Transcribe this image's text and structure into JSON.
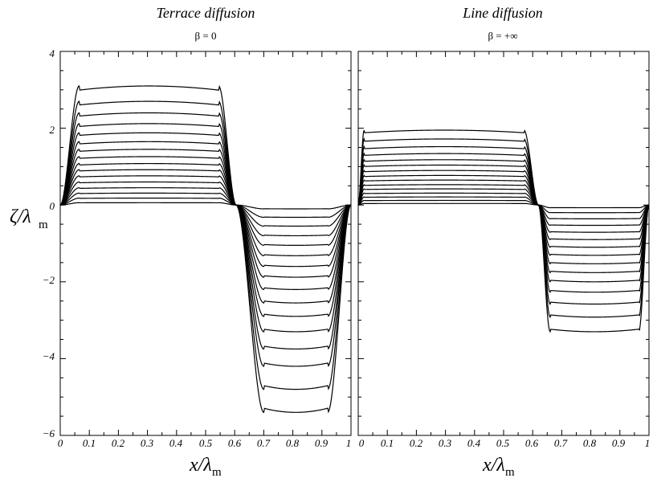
{
  "chart_data": [
    {
      "type": "line",
      "title": "Terrace diffusion",
      "subtitle": "β = 0",
      "ylabel_main": "ζ/λ",
      "ylabel_sub": "m",
      "xlabel_main": "x/λ",
      "xlabel_sub": "m",
      "xlim": [
        0,
        1
      ],
      "ylim": [
        -6,
        4
      ],
      "xticks": [
        "0",
        "0.1",
        "0.2",
        "0.3",
        "0.4",
        "0.5",
        "0.6",
        "0.7",
        "0.8",
        "0.9",
        "1"
      ],
      "yticks": [
        "4",
        "2",
        "0",
        "−2",
        "−4",
        "−6"
      ],
      "grid": false,
      "profile": {
        "plateau_start": 0.065,
        "plateau_end": 0.545,
        "crossing": 0.605,
        "trough_start": 0.7,
        "trough_end": 0.92
      },
      "series": [
        {
          "max": 3.1,
          "min": -5.4
        },
        {
          "max": 2.7,
          "min": -4.8
        },
        {
          "max": 2.4,
          "min": -4.2
        },
        {
          "max": 2.12,
          "min": -3.75
        },
        {
          "max": 1.88,
          "min": -3.3
        },
        {
          "max": 1.65,
          "min": -2.9
        },
        {
          "max": 1.45,
          "min": -2.55
        },
        {
          "max": 1.26,
          "min": -2.2
        },
        {
          "max": 1.08,
          "min": -1.88
        },
        {
          "max": 0.92,
          "min": -1.6
        },
        {
          "max": 0.76,
          "min": -1.32
        },
        {
          "max": 0.6,
          "min": -1.05
        },
        {
          "max": 0.45,
          "min": -0.8
        },
        {
          "max": 0.31,
          "min": -0.55
        },
        {
          "max": 0.18,
          "min": -0.32
        },
        {
          "max": 0.06,
          "min": -0.1
        }
      ]
    },
    {
      "type": "line",
      "title": "Line diffusion",
      "subtitle": "β = +∞",
      "xlabel_main": "x/λ",
      "xlabel_sub": "m",
      "xlim": [
        0,
        1
      ],
      "ylim": [
        -6,
        4
      ],
      "xticks": [
        "0",
        "0.1",
        "0.2",
        "0.3",
        "0.4",
        "0.5",
        "0.6",
        "0.7",
        "0.8",
        "0.9",
        "1"
      ],
      "grid": false,
      "profile": {
        "plateau_start": 0.02,
        "plateau_end": 0.57,
        "crossing": 0.62,
        "trough_start": 0.66,
        "trough_end": 0.965
      },
      "series": [
        {
          "max": 1.95,
          "min": -3.3
        },
        {
          "max": 1.72,
          "min": -2.92
        },
        {
          "max": 1.52,
          "min": -2.58
        },
        {
          "max": 1.34,
          "min": -2.27
        },
        {
          "max": 1.18,
          "min": -2.0
        },
        {
          "max": 1.04,
          "min": -1.76
        },
        {
          "max": 0.9,
          "min": -1.53
        },
        {
          "max": 0.77,
          "min": -1.31
        },
        {
          "max": 0.65,
          "min": -1.1
        },
        {
          "max": 0.53,
          "min": -0.9
        },
        {
          "max": 0.42,
          "min": -0.71
        },
        {
          "max": 0.31,
          "min": -0.53
        },
        {
          "max": 0.21,
          "min": -0.36
        },
        {
          "max": 0.12,
          "min": -0.2
        },
        {
          "max": 0.04,
          "min": -0.07
        }
      ]
    }
  ]
}
